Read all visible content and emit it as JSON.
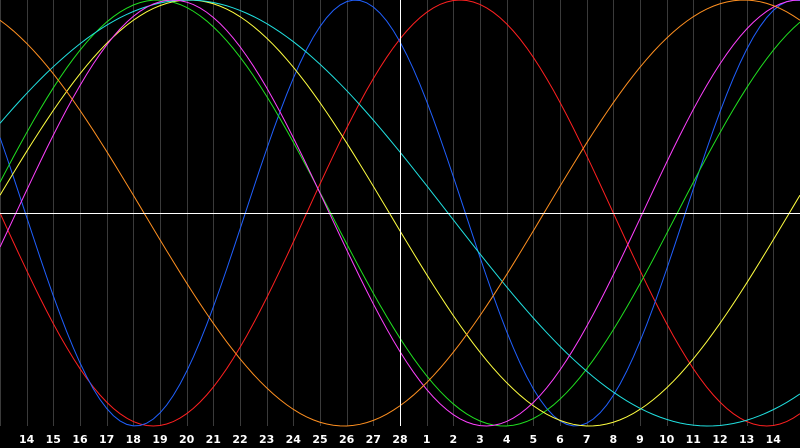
{
  "chart_data": {
    "type": "line",
    "title": "",
    "xlabel": "",
    "ylabel": "",
    "grid": true,
    "legend": "none",
    "background": "#000000",
    "grid_color": "#3a3a3a",
    "axis_color": "#ffffff",
    "tick_label_color": "#ffffff",
    "x_ticks": [
      "14",
      "15",
      "16",
      "17",
      "18",
      "19",
      "20",
      "21",
      "22",
      "23",
      "24",
      "25",
      "26",
      "27",
      "28",
      "1",
      "2",
      "3",
      "4",
      "5",
      "6",
      "7",
      "8",
      "9",
      "10",
      "11",
      "12",
      "13",
      "14"
    ],
    "x_range": [
      0,
      30
    ],
    "y_range": [
      -1,
      1
    ],
    "crosshair": {
      "x": 15,
      "y": 0
    },
    "series": [
      {
        "color": "#ff2020",
        "period": 23,
        "phase": 11.5,
        "sample_step": 0.25
      },
      {
        "color": "#2060ff",
        "period": 16.5,
        "phase": 23.8,
        "sample_step": 0.25
      },
      {
        "color": "#20e020",
        "period": 26,
        "phase": 26.6,
        "sample_step": 0.25
      },
      {
        "color": "#ffff40",
        "period": 30,
        "phase": 30.4,
        "sample_step": 0.25
      },
      {
        "color": "#20e0e0",
        "period": 39,
        "phase": 41.7,
        "sample_step": 0.25
      },
      {
        "color": "#ff40ff",
        "period": 23.5,
        "phase": 22.9,
        "sample_step": 0.25
      },
      {
        "color": "#ff9020",
        "period": 30,
        "phase": 9.6,
        "sample_step": 0.25
      }
    ]
  }
}
